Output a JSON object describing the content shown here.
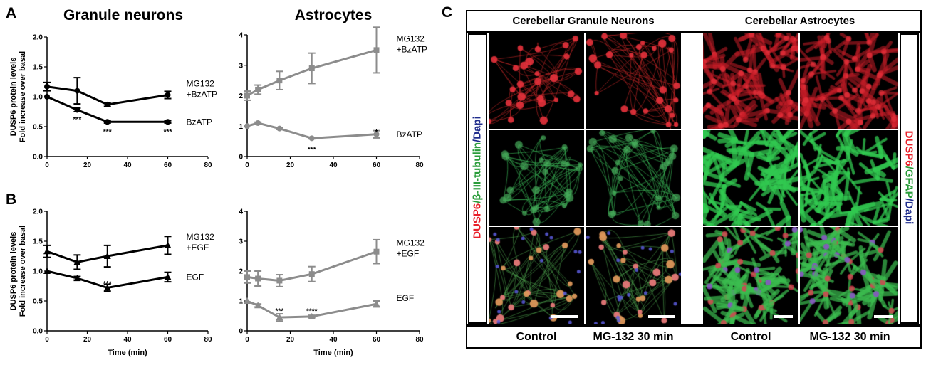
{
  "panel_letters": {
    "a": "A",
    "b": "B",
    "c": "C"
  },
  "titles": {
    "granule": "Granule neurons",
    "astro": "Astrocytes"
  },
  "y_axis_label_line1": "DUSP6 protein levels",
  "y_axis_label_line2": "Fold increase over basal",
  "x_axis_label": "Time (min)",
  "colors": {
    "neuron_series": "#000000",
    "astro_series": "#8c8c8c",
    "dusp6": "#e8202a",
    "tubulin": "#2a9c3a",
    "dapi": "#1f2c8c"
  },
  "chart_data": [
    {
      "id": "A-neurons",
      "type": "line",
      "title": "Granule neurons",
      "xlabel": "",
      "ylabel": "DUSP6 protein levels / Fold increase over basal",
      "xlim": [
        0,
        80
      ],
      "ylim": [
        0,
        2.0
      ],
      "xticks": [
        0,
        20,
        40,
        60,
        80
      ],
      "yticks": [
        0.0,
        0.5,
        1.0,
        1.5,
        2.0
      ],
      "series": [
        {
          "name": "MG132 +BzATP",
          "label_lines": [
            "MG132",
            "+BzATP"
          ],
          "marker": "circle",
          "x": [
            0,
            15,
            30,
            60
          ],
          "y": [
            1.17,
            1.1,
            0.87,
            1.03
          ],
          "err": [
            0.07,
            0.22,
            0.03,
            0.06
          ]
        },
        {
          "name": "BzATP",
          "label_lines": [
            "BzATP"
          ],
          "marker": "circle",
          "x": [
            0,
            15,
            30,
            60
          ],
          "y": [
            1.0,
            0.78,
            0.58,
            0.58
          ],
          "err": [
            0.0,
            0.03,
            0.02,
            0.02
          ]
        }
      ],
      "annotations": [
        {
          "x": 15,
          "y": 0.63,
          "text": "***"
        },
        {
          "x": 30,
          "y": 0.42,
          "text": "***"
        },
        {
          "x": 60,
          "y": 0.42,
          "text": "***"
        }
      ]
    },
    {
      "id": "A-astrocytes",
      "type": "line",
      "title": "Astrocytes",
      "xlabel": "",
      "ylabel": "",
      "xlim": [
        0,
        80
      ],
      "ylim": [
        0,
        4
      ],
      "xticks": [
        0,
        20,
        40,
        60,
        80
      ],
      "yticks": [
        0,
        1,
        2,
        3,
        4
      ],
      "series": [
        {
          "name": "MG132 +BzATP",
          "label_lines": [
            "MG132",
            "+BzATP"
          ],
          "marker": "square",
          "x": [
            0,
            5,
            15,
            30,
            60
          ],
          "y": [
            2.0,
            2.2,
            2.5,
            2.9,
            3.5
          ],
          "err": [
            0.15,
            0.15,
            0.3,
            0.5,
            0.75
          ]
        },
        {
          "name": "BzATP",
          "label_lines": [
            "BzATP"
          ],
          "marker": "circle",
          "x": [
            0,
            5,
            15,
            30,
            60
          ],
          "y": [
            1.0,
            1.1,
            0.92,
            0.6,
            0.73
          ],
          "err": [
            0.0,
            0.03,
            0.03,
            0.02,
            0.12
          ]
        }
      ],
      "annotations": [
        {
          "x": 30,
          "y": 0.25,
          "text": "***"
        },
        {
          "x": 60,
          "y": 0.82,
          "text": "*"
        }
      ]
    },
    {
      "id": "B-neurons",
      "type": "line",
      "title": "",
      "xlabel": "Time (min)",
      "ylabel": "DUSP6 protein levels / Fold increase over basal",
      "xlim": [
        0,
        80
      ],
      "ylim": [
        0,
        2.0
      ],
      "xticks": [
        0,
        20,
        40,
        60,
        80
      ],
      "yticks": [
        0.0,
        0.5,
        1.0,
        1.5,
        2.0
      ],
      "series": [
        {
          "name": "MG132 +EGF",
          "label_lines": [
            "MG132",
            "+EGF"
          ],
          "marker": "triangle",
          "x": [
            0,
            15,
            30,
            60
          ],
          "y": [
            1.33,
            1.15,
            1.25,
            1.43
          ],
          "err": [
            0.1,
            0.12,
            0.18,
            0.15
          ]
        },
        {
          "name": "EGF",
          "label_lines": [
            "EGF"
          ],
          "marker": "triangle",
          "x": [
            0,
            15,
            30,
            60
          ],
          "y": [
            1.0,
            0.88,
            0.72,
            0.9
          ],
          "err": [
            0.0,
            0.03,
            0.06,
            0.08
          ]
        }
      ],
      "annotations": [
        {
          "x": 30,
          "y": 0.8,
          "text": "***"
        }
      ]
    },
    {
      "id": "B-astrocytes",
      "type": "line",
      "title": "",
      "xlabel": "Time (min)",
      "ylabel": "",
      "xlim": [
        0,
        80
      ],
      "ylim": [
        0,
        4
      ],
      "xticks": [
        0,
        20,
        40,
        60,
        80
      ],
      "yticks": [
        0,
        1,
        2,
        3,
        4
      ],
      "series": [
        {
          "name": "MG132 +EGF",
          "label_lines": [
            "MG132",
            "+EGF"
          ],
          "marker": "square",
          "x": [
            0,
            5,
            15,
            30,
            60
          ],
          "y": [
            1.8,
            1.75,
            1.68,
            1.9,
            2.65
          ],
          "err": [
            0.2,
            0.25,
            0.2,
            0.25,
            0.4
          ]
        },
        {
          "name": "EGF",
          "label_lines": [
            "EGF"
          ],
          "marker": "triangle",
          "x": [
            0,
            5,
            15,
            30,
            60
          ],
          "y": [
            1.0,
            0.85,
            0.45,
            0.48,
            0.9
          ],
          "err": [
            0.0,
            0.05,
            0.12,
            0.04,
            0.1
          ]
        }
      ],
      "annotations": [
        {
          "x": 15,
          "y": 0.68,
          "text": "***"
        },
        {
          "x": 30,
          "y": 0.68,
          "text": "****"
        }
      ]
    }
  ],
  "panel_c": {
    "header_left": "Cerebellar Granule Neurons",
    "header_right": "Cerebellar Astrocytes",
    "footers": [
      "Control",
      "MG-132 30 min",
      "Control",
      "MG-132 30 min"
    ],
    "left_label": [
      {
        "text": "DUSP6",
        "color": "#e8202a"
      },
      {
        "text": "/β-III-tubulin",
        "color": "#2a9c3a"
      },
      {
        "text": "/Dapi",
        "color": "#1f2c8c"
      }
    ],
    "right_label": [
      {
        "text": "DUSP6",
        "color": "#e8202a"
      },
      {
        "text": "/GFAP",
        "color": "#2a9c3a"
      },
      {
        "text": "/Dapi",
        "color": "#1f2c8c"
      }
    ],
    "rows": [
      "DUSP6",
      "tubulin-or-GFAP",
      "merge"
    ],
    "scale_bars": "white"
  }
}
